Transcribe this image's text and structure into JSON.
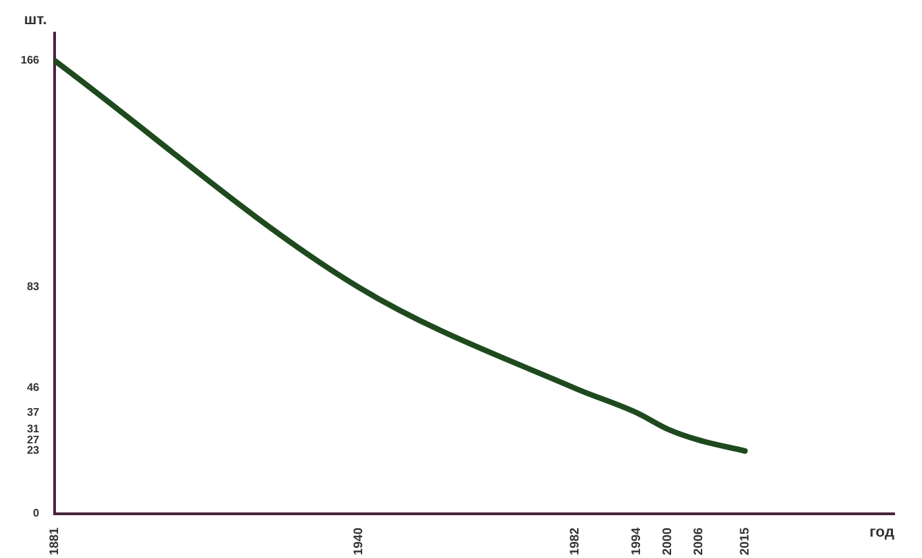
{
  "chart_data": {
    "type": "line",
    "xlabel": "год",
    "ylabel": "шт.",
    "x": [
      1881,
      1940,
      1982,
      1994,
      2000,
      2006,
      2015
    ],
    "series": [
      {
        "color": "#1e4a1e",
        "values": [
          166,
          83,
          46,
          37,
          31,
          27,
          23
        ]
      }
    ],
    "xlim": [
      1881,
      2044
    ],
    "xticks": [
      1881,
      1940,
      1982,
      1994,
      2000,
      2006,
      2015
    ],
    "ylim": [
      0,
      176
    ],
    "yticks": [
      0,
      23,
      27,
      31,
      37,
      46,
      83,
      166
    ],
    "grid": false,
    "legend": false,
    "marker": "none",
    "line_style": "solid"
  }
}
